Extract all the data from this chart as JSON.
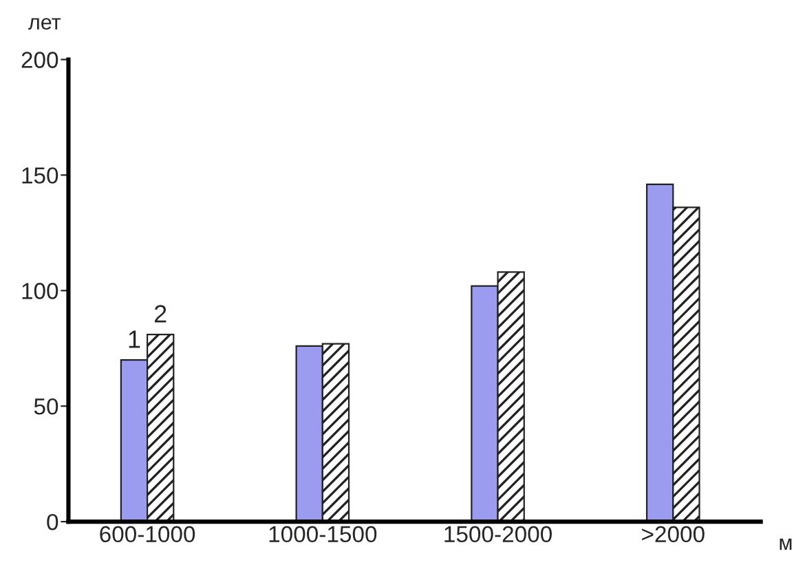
{
  "chart_data": {
    "type": "bar",
    "ylabel": "лет",
    "xlabel": "м",
    "categories": [
      "600-1000",
      "1000-1500",
      "1500-2000",
      ">2000"
    ],
    "series": [
      {
        "name": "1",
        "color": "#9b9bf0",
        "values": [
          70,
          76,
          102,
          146
        ]
      },
      {
        "name": "2",
        "color": "#222222",
        "values": [
          81,
          77,
          108,
          136
        ]
      }
    ],
    "ylim": [
      0,
      200
    ],
    "yticks": [
      0,
      50,
      100,
      150,
      200
    ],
    "grid": false,
    "legend": false
  }
}
